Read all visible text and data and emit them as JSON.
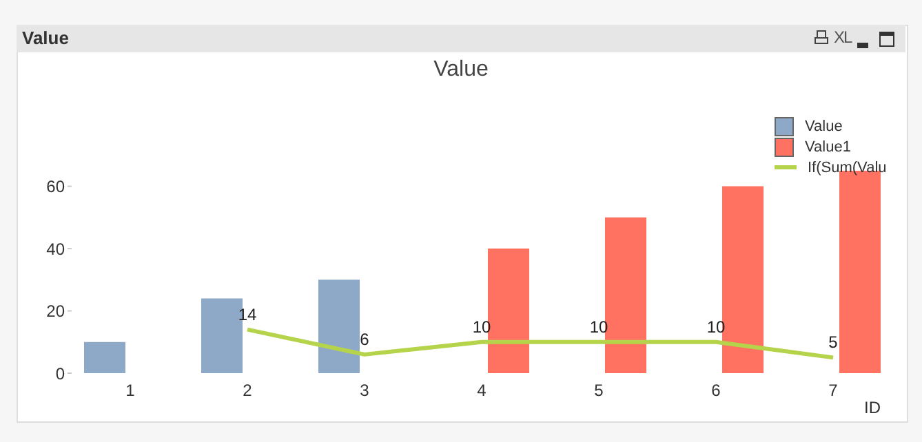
{
  "chart_data": {
    "type": "bar",
    "title": "Value",
    "xlabel": "ID",
    "annotations": [
      "Value",
      "XL"
    ],
    "categories": [
      "1",
      "2",
      "3",
      "4",
      "5",
      "6",
      "7"
    ],
    "series": [
      {
        "name": "Value",
        "color": "#8ea9c8",
        "values": [
          10,
          24,
          30,
          null,
          null,
          null,
          null
        ]
      },
      {
        "name": "Value1",
        "color": "#ff7262",
        "values": [
          null,
          null,
          null,
          40,
          50,
          60,
          65
        ]
      },
      {
        "name": "If(Sum(Valu",
        "type": "line",
        "color": "#b5d34b",
        "values": [
          null,
          14,
          6,
          10,
          10,
          10,
          5
        ],
        "value_labels": [
          null,
          "14",
          "6",
          "10",
          "10",
          "10",
          "5"
        ]
      }
    ],
    "ylim": [
      0,
      65
    ],
    "yticks": [
      0,
      20,
      40,
      60
    ],
    "grid": false,
    "legend": "top right"
  }
}
